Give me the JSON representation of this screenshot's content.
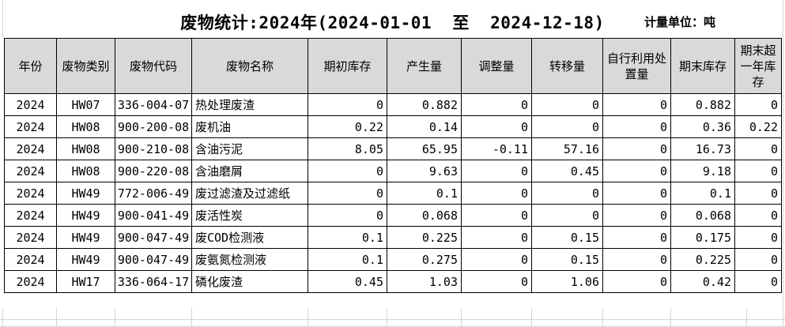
{
  "title": "废物统计:2024年(2024-01-01  至  2024-12-18)",
  "unit_label": "计量单位：吨",
  "chart_data": {
    "type": "table",
    "title": "废物统计:2024年(2024-01-01 至 2024-12-18)",
    "unit": "吨",
    "columns": [
      "年份",
      "废物类别",
      "废物代码",
      "废物名称",
      "期初库存",
      "产生量",
      "调整量",
      "转移量",
      "自行利用处置量",
      "期末库存",
      "期末超一年库存"
    ],
    "rows": [
      [
        "2024",
        "HW07",
        "336-004-07",
        "热处理废渣",
        "0",
        "0.882",
        "0",
        "0",
        "0",
        "0.882",
        "0"
      ],
      [
        "2024",
        "HW08",
        "900-200-08",
        "废机油",
        "0.22",
        "0.14",
        "0",
        "0",
        "0",
        "0.36",
        "0.22"
      ],
      [
        "2024",
        "HW08",
        "900-210-08",
        "含油污泥",
        "8.05",
        "65.95",
        "-0.11",
        "57.16",
        "0",
        "16.73",
        "0"
      ],
      [
        "2024",
        "HW08",
        "900-220-08",
        "含油磨屑",
        "0",
        "9.63",
        "0",
        "0.45",
        "0",
        "9.18",
        "0"
      ],
      [
        "2024",
        "HW49",
        "772-006-49",
        "废过滤渣及过滤纸",
        "0",
        "0.1",
        "0",
        "0",
        "0",
        "0.1",
        "0"
      ],
      [
        "2024",
        "HW49",
        "900-041-49",
        "废活性炭",
        "0",
        "0.068",
        "0",
        "0",
        "0",
        "0.068",
        "0"
      ],
      [
        "2024",
        "HW49",
        "900-047-49",
        "废COD检测液",
        "0.1",
        "0.225",
        "0",
        "0.15",
        "0",
        "0.175",
        "0"
      ],
      [
        "2024",
        "HW49",
        "900-047-49",
        "废氨氮检测液",
        "0.1",
        "0.275",
        "0",
        "0.15",
        "0",
        "0.225",
        "0"
      ],
      [
        "2024",
        "HW17",
        "336-064-17",
        "磷化废渣",
        "0.45",
        "1.03",
        "0",
        "1.06",
        "0",
        "0.42",
        "0"
      ]
    ]
  },
  "colors": {
    "header_bg": "#d9d9d9",
    "table_border": "#000000",
    "sheet_gridline": "#d4d4d4",
    "text": "#000000"
  }
}
